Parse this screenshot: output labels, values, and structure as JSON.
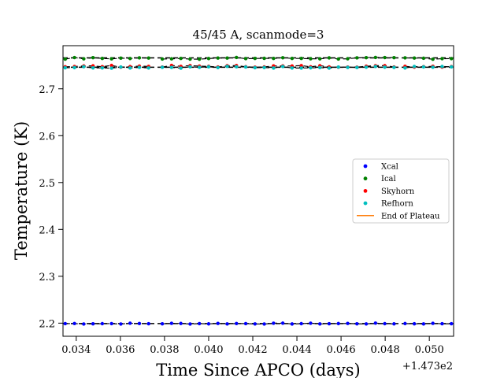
{
  "chart_data": {
    "type": "scatter",
    "title": "45/45 A, scanmode=3",
    "xlabel": "Time Since APCO (days)",
    "ylabel": "Temperature (K)",
    "x_offset_label": "+1.473e2",
    "xlim": [
      0.0334,
      0.0511
    ],
    "ylim": [
      2.172,
      2.792
    ],
    "x_ticks": [
      0.034,
      0.036,
      0.038,
      0.04,
      0.042,
      0.044,
      0.046,
      0.048,
      0.05
    ],
    "x_tick_labels": [
      "0.034",
      "0.036",
      "0.038",
      "0.040",
      "0.042",
      "0.044",
      "0.046",
      "0.048",
      "0.050"
    ],
    "y_ticks": [
      2.2,
      2.3,
      2.4,
      2.5,
      2.6,
      2.7
    ],
    "y_tick_labels": [
      "2.2",
      "2.3",
      "2.4",
      "2.5",
      "2.6",
      "2.7"
    ],
    "legend_position": "center-right",
    "grid": false,
    "segments": [
      [
        0.0335,
        0.0373
      ],
      [
        0.0379,
        0.0484
      ],
      [
        0.0489,
        0.0511
      ]
    ],
    "series": [
      {
        "name": "Xcal",
        "color": "#0000ff",
        "level": 2.199,
        "jitter": 0.001
      },
      {
        "name": "Ical",
        "color": "#008000",
        "level": 2.765,
        "jitter": 0.002
      },
      {
        "name": "Skyhorn",
        "color": "#ff0000",
        "level": 2.748,
        "jitter": 0.002
      },
      {
        "name": "Refhorn",
        "color": "#00bfbf",
        "level": 2.746,
        "jitter": 0.002
      }
    ],
    "plateau_levels": [
      2.199,
      2.746,
      2.766
    ],
    "end_of_plateau": {
      "name": "End of Plateau",
      "color": "#ff7f0e"
    }
  }
}
